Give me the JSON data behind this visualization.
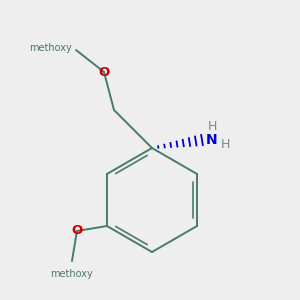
{
  "background_color": "#eeeeee",
  "bond_color": "#4a7a6a",
  "oxygen_color": "#cc0000",
  "nitrogen_color": "#0000cc",
  "hydrogen_color": "#6b9090",
  "methyl_top_label": "methoxy",
  "methyl_bot_label": "methoxy",
  "nh2_n_label": "N",
  "nh2_h1_label": "H",
  "nh2_h2_label": "H",
  "o_top_label": "O",
  "o_bot_label": "O"
}
